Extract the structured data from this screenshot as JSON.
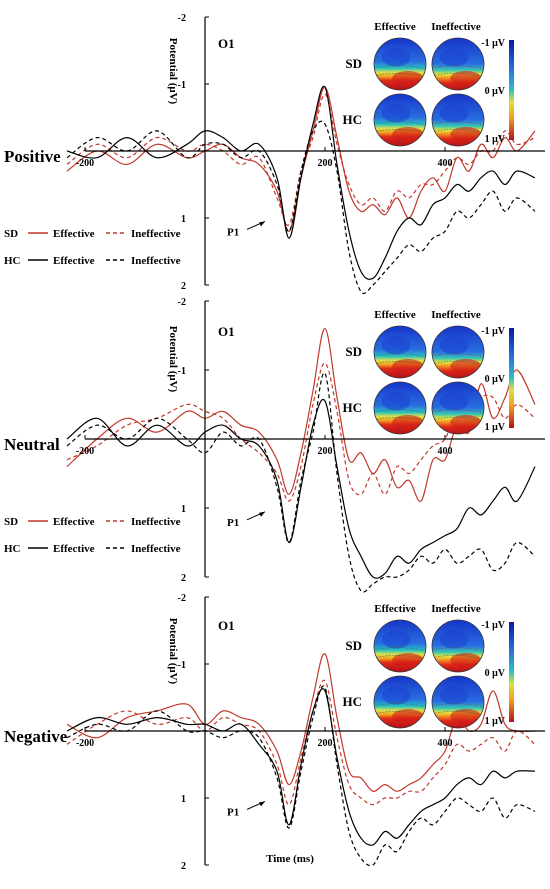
{
  "figure": {
    "time_label": "Time (ms)",
    "y_label": "Potential (μV)",
    "channel": "O1",
    "peak_label": "P1",
    "x_ticks": [
      "-200",
      "200",
      "400"
    ],
    "y_ticks": [
      "-2",
      "-1",
      "1",
      "2"
    ],
    "topo_headers": [
      "Effective",
      "Ineffective"
    ],
    "topo_rows": [
      "SD",
      "HC"
    ],
    "colorbar_ticks": [
      "-1 μV",
      "0 μV",
      "1 μV"
    ],
    "colors": {
      "SD": "#c0392b",
      "HC": "#000000"
    },
    "legend": [
      {
        "group": "SD",
        "condition": "Effective",
        "style": "solid"
      },
      {
        "group": "SD",
        "condition": "Ineffective",
        "style": "dashed"
      },
      {
        "group": "HC",
        "condition": "Effective",
        "style": "solid"
      },
      {
        "group": "HC",
        "condition": "Ineffective",
        "style": "dashed"
      }
    ]
  },
  "chart_data": [
    {
      "type": "line",
      "title": "Positive",
      "xlabel": "Time (ms)",
      "ylabel": "Potential (μV)",
      "xlim": [
        -230,
        550
      ],
      "ylim": [
        -2,
        2
      ],
      "y_inverted": true,
      "x": [
        -230,
        -180,
        -130,
        -80,
        -30,
        0,
        30,
        60,
        90,
        120,
        140,
        160,
        180,
        200,
        220,
        240,
        260,
        280,
        300,
        320,
        340,
        360,
        380,
        400,
        420,
        440,
        460,
        480,
        500,
        520,
        550
      ],
      "series": [
        {
          "name": "SD Effective",
          "values": [
            0.3,
            0.0,
            0.2,
            -0.1,
            0.1,
            0.0,
            -0.1,
            0.1,
            0.2,
            0.6,
            1.2,
            0.4,
            -0.3,
            -0.95,
            -0.2,
            0.6,
            0.9,
            0.8,
            0.95,
            0.7,
            1.0,
            0.6,
            0.4,
            0.6,
            0.1,
            0.3,
            -0.1,
            0.1,
            -0.2,
            0.0,
            -0.3
          ]
        },
        {
          "name": "SD Ineffective",
          "values": [
            0.2,
            -0.1,
            0.1,
            -0.2,
            0.0,
            -0.1,
            0.0,
            0.2,
            0.1,
            0.7,
            1.1,
            0.3,
            -0.2,
            -0.85,
            -0.1,
            0.5,
            0.8,
            0.7,
            0.9,
            0.6,
            0.7,
            0.5,
            0.5,
            0.3,
            0.1,
            0.2,
            0.0,
            0.0,
            -0.3,
            -0.1,
            -0.2
          ]
        },
        {
          "name": "HC Effective",
          "values": [
            0.0,
            0.1,
            -0.2,
            0.1,
            -0.1,
            -0.3,
            -0.2,
            0.0,
            -0.1,
            0.4,
            1.3,
            0.4,
            -0.4,
            -0.95,
            0.2,
            1.2,
            1.8,
            1.9,
            1.6,
            1.2,
            1.0,
            1.1,
            0.8,
            0.7,
            0.5,
            0.6,
            0.4,
            0.3,
            0.5,
            0.3,
            0.4
          ]
        },
        {
          "name": "HC Ineffective",
          "values": [
            0.1,
            -0.2,
            0.0,
            -0.3,
            0.1,
            -0.1,
            -0.1,
            0.1,
            0.0,
            0.5,
            1.2,
            0.3,
            -0.3,
            -0.4,
            0.3,
            1.5,
            2.1,
            2.0,
            1.8,
            1.6,
            1.4,
            1.5,
            1.3,
            1.2,
            0.9,
            1.0,
            0.8,
            0.6,
            0.9,
            0.7,
            0.9
          ]
        }
      ]
    },
    {
      "type": "line",
      "title": "Neutral",
      "xlabel": "Time (ms)",
      "ylabel": "Potential (μV)",
      "xlim": [
        -230,
        550
      ],
      "ylim": [
        -2,
        2
      ],
      "y_inverted": true,
      "x": [
        -230,
        -180,
        -130,
        -80,
        -30,
        0,
        30,
        60,
        90,
        120,
        140,
        160,
        180,
        200,
        220,
        240,
        260,
        280,
        300,
        320,
        340,
        360,
        380,
        400,
        420,
        440,
        460,
        480,
        500,
        520,
        550
      ],
      "series": [
        {
          "name": "SD Effective",
          "values": [
            0.4,
            0.0,
            -0.3,
            -0.1,
            -0.4,
            -0.3,
            -0.4,
            -0.2,
            -0.1,
            0.3,
            0.8,
            0.2,
            -0.7,
            -1.6,
            -0.6,
            0.3,
            0.2,
            0.5,
            0.3,
            0.7,
            0.6,
            0.9,
            0.3,
            0.3,
            -0.2,
            -0.1,
            -0.8,
            -0.3,
            -0.6,
            -1.0,
            -0.5
          ]
        },
        {
          "name": "SD Ineffective",
          "values": [
            0.3,
            0.1,
            -0.2,
            -0.3,
            -0.5,
            -0.4,
            -0.3,
            0.0,
            0.2,
            0.5,
            0.9,
            0.4,
            -0.5,
            -1.1,
            -0.4,
            0.6,
            0.8,
            0.5,
            0.8,
            0.4,
            0.5,
            0.3,
            0.1,
            0.0,
            -0.4,
            -0.3,
            -0.6,
            -0.6,
            -0.3,
            -0.5,
            -0.3
          ]
        },
        {
          "name": "HC Effective",
          "values": [
            0.0,
            -0.3,
            0.1,
            -0.2,
            0.1,
            -0.1,
            -0.2,
            0.0,
            0.1,
            0.6,
            1.5,
            0.7,
            -0.2,
            -0.55,
            0.4,
            1.3,
            1.7,
            2.0,
            1.95,
            1.7,
            1.8,
            1.6,
            1.5,
            1.4,
            1.3,
            1.0,
            1.1,
            0.9,
            0.7,
            0.9,
            0.4
          ]
        },
        {
          "name": "HC Ineffective",
          "values": [
            0.1,
            -0.2,
            0.0,
            -0.3,
            0.0,
            0.2,
            -0.1,
            0.1,
            0.0,
            0.7,
            1.5,
            0.6,
            -0.1,
            -0.95,
            0.5,
            1.7,
            2.2,
            2.1,
            2.0,
            2.0,
            1.9,
            1.7,
            1.8,
            1.6,
            1.8,
            1.7,
            1.6,
            1.9,
            1.8,
            1.5,
            1.7
          ]
        }
      ]
    },
    {
      "type": "line",
      "title": "Negative",
      "xlabel": "Time (ms)",
      "ylabel": "Potential (μV)",
      "xlim": [
        -230,
        550
      ],
      "ylim": [
        -2,
        2
      ],
      "y_inverted": true,
      "x": [
        -230,
        -180,
        -130,
        -80,
        -30,
        0,
        30,
        60,
        90,
        120,
        140,
        160,
        180,
        200,
        220,
        240,
        260,
        280,
        300,
        320,
        340,
        360,
        380,
        400,
        420,
        440,
        460,
        480,
        500,
        520,
        550
      ],
      "series": [
        {
          "name": "SD Effective",
          "values": [
            -0.1,
            0.1,
            -0.2,
            -0.3,
            -0.4,
            -0.1,
            -0.3,
            -0.2,
            -0.1,
            0.3,
            0.8,
            0.3,
            -0.5,
            -1.15,
            -0.2,
            0.6,
            0.7,
            0.9,
            0.8,
            0.9,
            0.8,
            0.7,
            0.5,
            0.3,
            -0.2,
            0.0,
            -0.1,
            -0.6,
            -0.1,
            0.0,
            0.0
          ]
        },
        {
          "name": "SD Ineffective",
          "values": [
            0.2,
            -0.1,
            -0.3,
            -0.1,
            -0.2,
            0.0,
            -0.2,
            -0.1,
            0.0,
            0.5,
            1.1,
            0.4,
            -0.3,
            -0.75,
            0.1,
            0.8,
            1.0,
            1.1,
            1.0,
            1.0,
            0.9,
            0.9,
            0.7,
            0.5,
            0.2,
            0.3,
            0.2,
            0.1,
            0.3,
            0.0,
            0.2
          ]
        },
        {
          "name": "HC Effective",
          "values": [
            0.0,
            -0.2,
            -0.1,
            -0.2,
            -0.1,
            -0.1,
            0.0,
            -0.1,
            0.2,
            0.6,
            1.4,
            0.5,
            -0.3,
            -0.6,
            0.4,
            1.2,
            1.6,
            1.7,
            1.5,
            1.6,
            1.4,
            1.2,
            1.1,
            1.0,
            0.8,
            0.7,
            0.8,
            0.6,
            0.7,
            0.6,
            0.6
          ]
        },
        {
          "name": "HC Ineffective",
          "values": [
            0.1,
            -0.1,
            0.0,
            -0.3,
            0.0,
            0.0,
            0.1,
            0.0,
            0.1,
            0.7,
            1.45,
            0.6,
            -0.2,
            -0.65,
            0.5,
            1.5,
            1.9,
            2.0,
            1.7,
            1.8,
            1.5,
            1.3,
            1.4,
            1.2,
            1.0,
            1.1,
            1.2,
            1.0,
            1.3,
            1.1,
            1.2
          ]
        }
      ]
    }
  ]
}
